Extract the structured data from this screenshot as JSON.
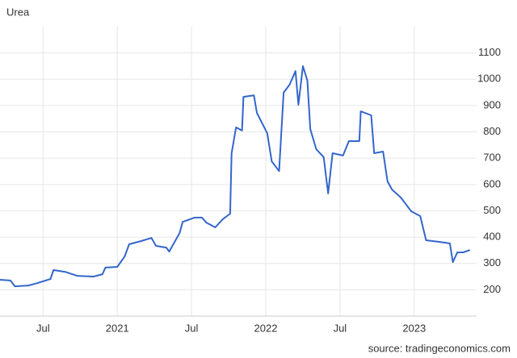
{
  "chart_data": {
    "type": "line",
    "title": "Urea",
    "source": "source: tradingeconomics.com",
    "series": [
      {
        "name": "Urea",
        "color": "#3366cc",
        "x": [
          2020.21,
          2020.28,
          2020.31,
          2020.4,
          2020.46,
          2020.55,
          2020.57,
          2020.65,
          2020.73,
          2020.84,
          2020.9,
          2020.92,
          2021.0,
          2021.05,
          2021.08,
          2021.16,
          2021.23,
          2021.26,
          2021.33,
          2021.35,
          2021.42,
          2021.44,
          2021.52,
          2021.57,
          2021.6,
          2021.66,
          2021.71,
          2021.76,
          2021.77,
          2021.8,
          2021.84,
          2021.85,
          2021.92,
          2021.94,
          2022.01,
          2022.04,
          2022.09,
          2022.12,
          2022.16,
          2022.2,
          2022.22,
          2022.25,
          2022.28,
          2022.3,
          2022.34,
          2022.39,
          2022.42,
          2022.45,
          2022.52,
          2022.56,
          2022.63,
          2022.64,
          2022.71,
          2022.73,
          2022.79,
          2022.82,
          2022.85,
          2022.91,
          2022.98,
          2023.04,
          2023.08,
          2023.17,
          2023.24,
          2023.26,
          2023.29,
          2023.33,
          2023.375
        ],
        "values": [
          238,
          235,
          213,
          216,
          225,
          241,
          275,
          268,
          253,
          250,
          259,
          284,
          287,
          327,
          373,
          385,
          397,
          367,
          360,
          345,
          416,
          458,
          474,
          474,
          455,
          437,
          468,
          489,
          719,
          817,
          805,
          933,
          939,
          872,
          795,
          688,
          651,
          949,
          979,
          1031,
          903,
          1050,
          995,
          811,
          734,
          704,
          566,
          719,
          710,
          765,
          765,
          878,
          863,
          719,
          725,
          612,
          581,
          550,
          498,
          480,
          388,
          382,
          376,
          305,
          342,
          342,
          351
        ]
      }
    ],
    "xlim": [
      2020.21,
      2023.42
    ],
    "xticks": [
      {
        "value": 2020.5,
        "label": "Jul"
      },
      {
        "value": 2021,
        "label": "2021"
      },
      {
        "value": 2021.5,
        "label": "Jul"
      },
      {
        "value": 2022,
        "label": "2022"
      },
      {
        "value": 2022.5,
        "label": "Jul"
      },
      {
        "value": 2023,
        "label": "2023"
      }
    ],
    "ylim": [
      100,
      1200
    ],
    "yticks": [
      200,
      300,
      400,
      500,
      600,
      700,
      800,
      900,
      1000,
      1100
    ],
    "grid": true
  }
}
